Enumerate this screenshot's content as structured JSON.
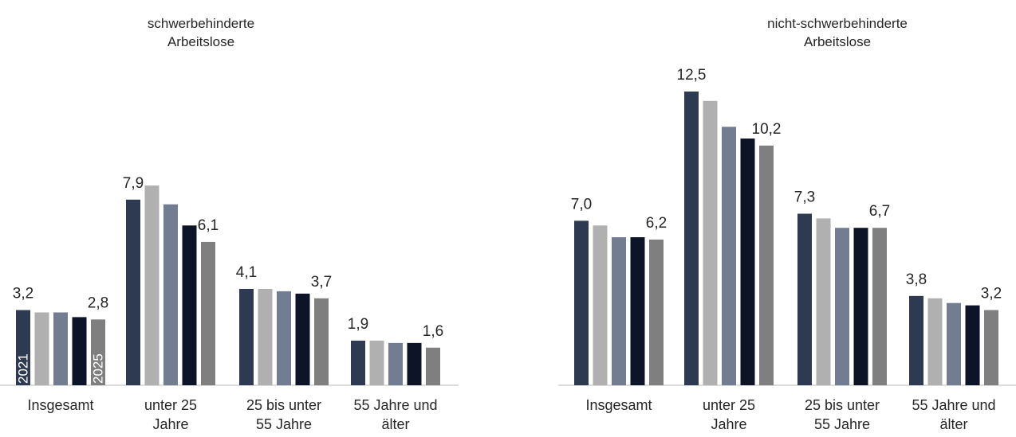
{
  "chart_data": [
    {
      "type": "bar",
      "title": "schwerbehinderte\nArbeitslose",
      "categories": [
        "Insgesamt",
        "unter 25\nJahre",
        "25 bis unter\n55 Jahre",
        "55 Jahre und\nälter"
      ],
      "series": [
        {
          "name": "2021",
          "color": "#2e3a52",
          "values": [
            3.2,
            7.9,
            4.1,
            1.9
          ],
          "value_labels": [
            "3,2",
            "7,9",
            "4,1",
            "1,9"
          ]
        },
        {
          "name": null,
          "color": "#b0b0b0",
          "values": [
            3.1,
            8.5,
            4.1,
            1.9
          ]
        },
        {
          "name": null,
          "color": "#737d92",
          "values": [
            3.1,
            7.7,
            4.0,
            1.8
          ]
        },
        {
          "name": null,
          "color": "#0d1427",
          "values": [
            2.9,
            6.8,
            3.9,
            1.8
          ]
        },
        {
          "name": "2025",
          "color": "#7f7f7f",
          "values": [
            2.8,
            6.1,
            3.7,
            1.6
          ],
          "value_labels": [
            "2,8",
            "6,1",
            "3,7",
            "1,6"
          ]
        }
      ]
    },
    {
      "type": "bar",
      "title": "nicht-schwerbehinderte\nArbeitslose",
      "categories": [
        "Insgesamt",
        "unter 25\nJahre",
        "25 bis unter\n55 Jahre",
        "55 Jahre und\nälter"
      ],
      "series": [
        {
          "name": null,
          "color": "#2e3a52",
          "values": [
            7.0,
            12.5,
            7.3,
            3.8
          ],
          "value_labels": [
            "7,0",
            "12,5",
            "7,3",
            "3,8"
          ]
        },
        {
          "name": null,
          "color": "#b0b0b0",
          "values": [
            6.8,
            12.1,
            7.1,
            3.7
          ]
        },
        {
          "name": null,
          "color": "#737d92",
          "values": [
            6.3,
            11.0,
            6.7,
            3.5
          ]
        },
        {
          "name": null,
          "color": "#0d1427",
          "values": [
            6.3,
            10.5,
            6.7,
            3.4
          ]
        },
        {
          "name": null,
          "color": "#7f7f7f",
          "values": [
            6.2,
            10.2,
            6.7,
            3.2
          ],
          "value_labels": [
            "6,2",
            "10,2",
            "6,7",
            "3,2"
          ]
        }
      ]
    }
  ]
}
